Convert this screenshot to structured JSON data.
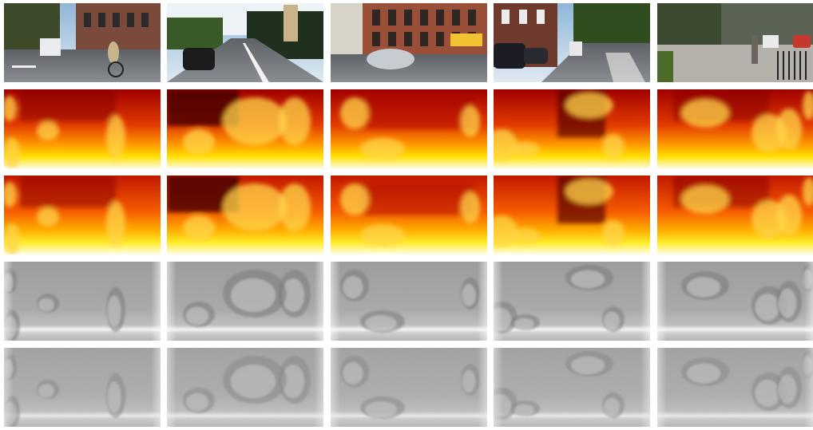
{
  "figure": {
    "rows": [
      {
        "kind": "rgb-street-scene"
      },
      {
        "kind": "depth-heatmap"
      },
      {
        "kind": "depth-heatmap"
      },
      {
        "kind": "grayscale-uncertainty-map"
      },
      {
        "kind": "grayscale-noisy-uncertainty-map"
      }
    ],
    "columns": [
      {
        "scene": "street-with-cyclist"
      },
      {
        "scene": "highway-with-car"
      },
      {
        "scene": "building-with-silver-car"
      },
      {
        "scene": "street-with-parked-cars"
      },
      {
        "scene": "street-with-pedestrians"
      }
    ],
    "colors": {
      "heat_dark": "#6b0000",
      "heat_red": "#d40000",
      "heat_orange": "#ff7a00",
      "heat_yellow": "#ffe300",
      "heat_white": "#fffbe0",
      "gray_mid": "#a8a8a8",
      "gray_light": "#e6e6e6"
    }
  }
}
